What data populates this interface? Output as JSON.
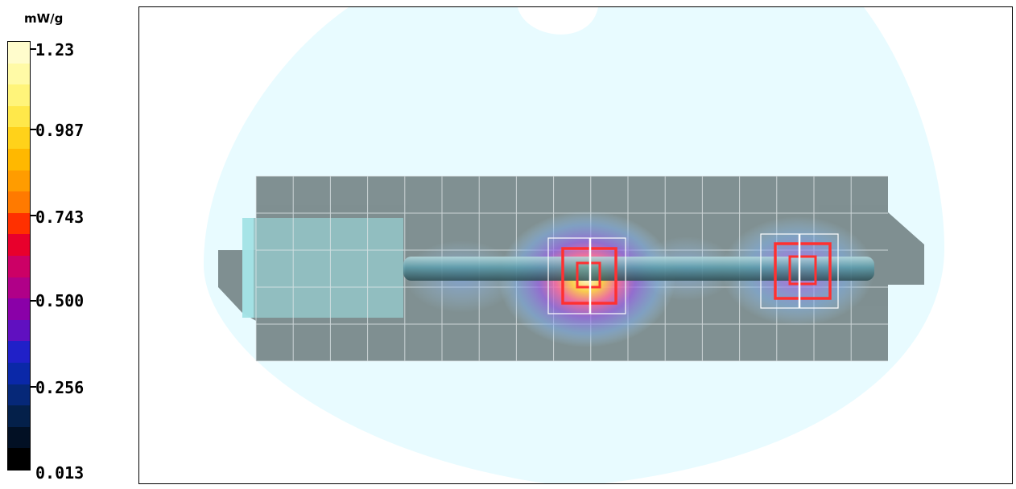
{
  "legend": {
    "unit": "mW/g",
    "ticks": [
      {
        "label": "1.23",
        "value": 1.23
      },
      {
        "label": "0.987",
        "value": 0.987
      },
      {
        "label": "0.743",
        "value": 0.743
      },
      {
        "label": "0.500",
        "value": 0.5
      },
      {
        "label": "0.256",
        "value": 0.256
      },
      {
        "label": "0.013",
        "value": 0.013
      }
    ],
    "colors_top_to_bottom": [
      "#fffccc",
      "#fffaa6",
      "#fff47a",
      "#ffe84a",
      "#ffd21a",
      "#ffb800",
      "#ff9c00",
      "#ff7a00",
      "#ff3000",
      "#e8002c",
      "#cc0066",
      "#b00088",
      "#8a00a8",
      "#6010c0",
      "#2020c8",
      "#0a28a8",
      "#062878",
      "#04204a",
      "#021024",
      "#000000"
    ]
  },
  "diagram": {
    "phantom_color": "#e8fbff",
    "device_color": "#7a8a8c",
    "grid_color": "#dfe6e8",
    "hotspot_color": "#ff3030"
  }
}
